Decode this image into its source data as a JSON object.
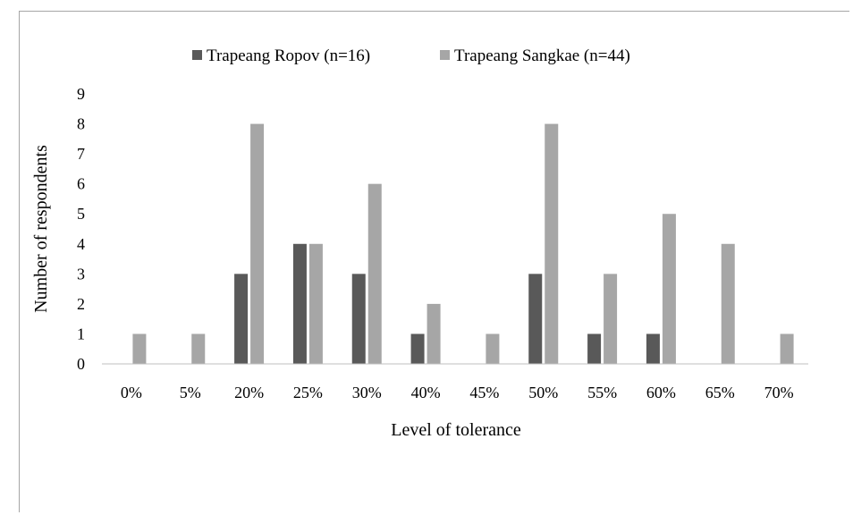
{
  "chart_data": {
    "type": "bar",
    "title": "",
    "xlabel": "Level of tolerance",
    "ylabel": "Number of respondents",
    "ylim": [
      0,
      9
    ],
    "yticks": [
      0,
      1,
      2,
      3,
      4,
      5,
      6,
      7,
      8,
      9
    ],
    "grid": false,
    "legend_position": "top",
    "categories": [
      "0%",
      "5%",
      "20%",
      "25%",
      "30%",
      "40%",
      "45%",
      "50%",
      "55%",
      "60%",
      "65%",
      "70%"
    ],
    "series": [
      {
        "name": "Trapeang Ropov (n=16)",
        "color": "#595959",
        "values": [
          0,
          0,
          3,
          4,
          3,
          1,
          0,
          3,
          1,
          1,
          0,
          0
        ]
      },
      {
        "name": "Trapeang Sangkae (n=44)",
        "color": "#a6a6a6",
        "values": [
          1,
          1,
          8,
          4,
          6,
          2,
          1,
          8,
          3,
          5,
          4,
          1
        ]
      }
    ]
  }
}
